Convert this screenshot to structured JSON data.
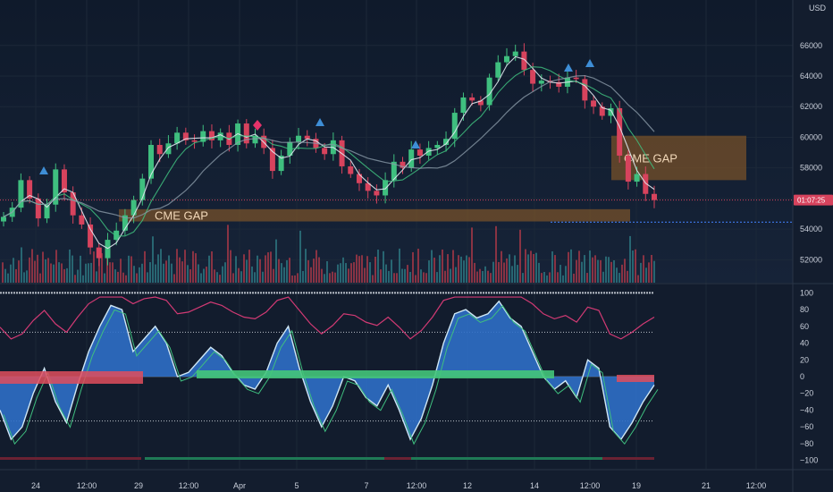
{
  "chart_data": [
    {
      "type": "candlestick",
      "currency": "USD",
      "y_ticks": [
        "66000",
        "64000",
        "62000",
        "60000",
        "58000",
        "56000",
        "54000",
        "52000"
      ],
      "ylim": [
        50500,
        68500
      ],
      "x_ticks": [
        "24",
        "12:00",
        "29",
        "12:00",
        "Apr",
        "5",
        "7",
        "12:00",
        "12",
        "14",
        "12:00",
        "19",
        "21",
        "12:00"
      ],
      "current_price_countdown": "01:07:25",
      "annotations": [
        {
          "label": "CME GAP",
          "y_range": [
            54500,
            55300
          ]
        },
        {
          "label": "CME GAP",
          "y_range": [
            57200,
            60100
          ]
        }
      ],
      "close_series": [
        54800,
        55400,
        57200,
        56000,
        54700,
        55600,
        57900,
        56400,
        54900,
        54300,
        52800,
        52100,
        53300,
        53900,
        54900,
        55900,
        57300,
        59500,
        58900,
        59600,
        60300,
        59800,
        59700,
        60400,
        59800,
        60300,
        59500,
        60900,
        59600,
        60100,
        59300,
        57800,
        58800,
        59700,
        60100,
        59900,
        59300,
        58900,
        59800,
        58100,
        57600,
        57000,
        56500,
        56200,
        57200,
        58400,
        58000,
        59200,
        58800,
        59300,
        59500,
        59900,
        61600,
        62600,
        62400,
        62100,
        63900,
        64900,
        65300,
        65600,
        64400,
        63500,
        63700,
        63600,
        63300,
        63900,
        63800,
        62400,
        62000,
        61400,
        61900,
        58800,
        57100,
        57600,
        56300,
        55900
      ]
    },
    {
      "type": "oscillator",
      "y_ticks": [
        "100",
        "80",
        "60",
        "40",
        "20",
        "0",
        "−20",
        "−40",
        "−60",
        "−80",
        "−100"
      ],
      "ylim": [
        -110,
        110
      ],
      "levels": [
        100,
        53,
        -53
      ],
      "wave_series": [
        -40,
        -75,
        -60,
        -20,
        10,
        -30,
        -55,
        -10,
        30,
        60,
        85,
        80,
        30,
        45,
        60,
        40,
        0,
        5,
        20,
        35,
        25,
        5,
        -10,
        -15,
        5,
        40,
        60,
        10,
        -30,
        -60,
        -35,
        0,
        -5,
        -25,
        -35,
        -10,
        -40,
        -75,
        -50,
        -10,
        40,
        75,
        80,
        70,
        75,
        90,
        70,
        60,
        30,
        0,
        -15,
        -5,
        -25,
        20,
        10,
        -60,
        -75,
        -55,
        -30,
        -10
      ]
    }
  ]
}
